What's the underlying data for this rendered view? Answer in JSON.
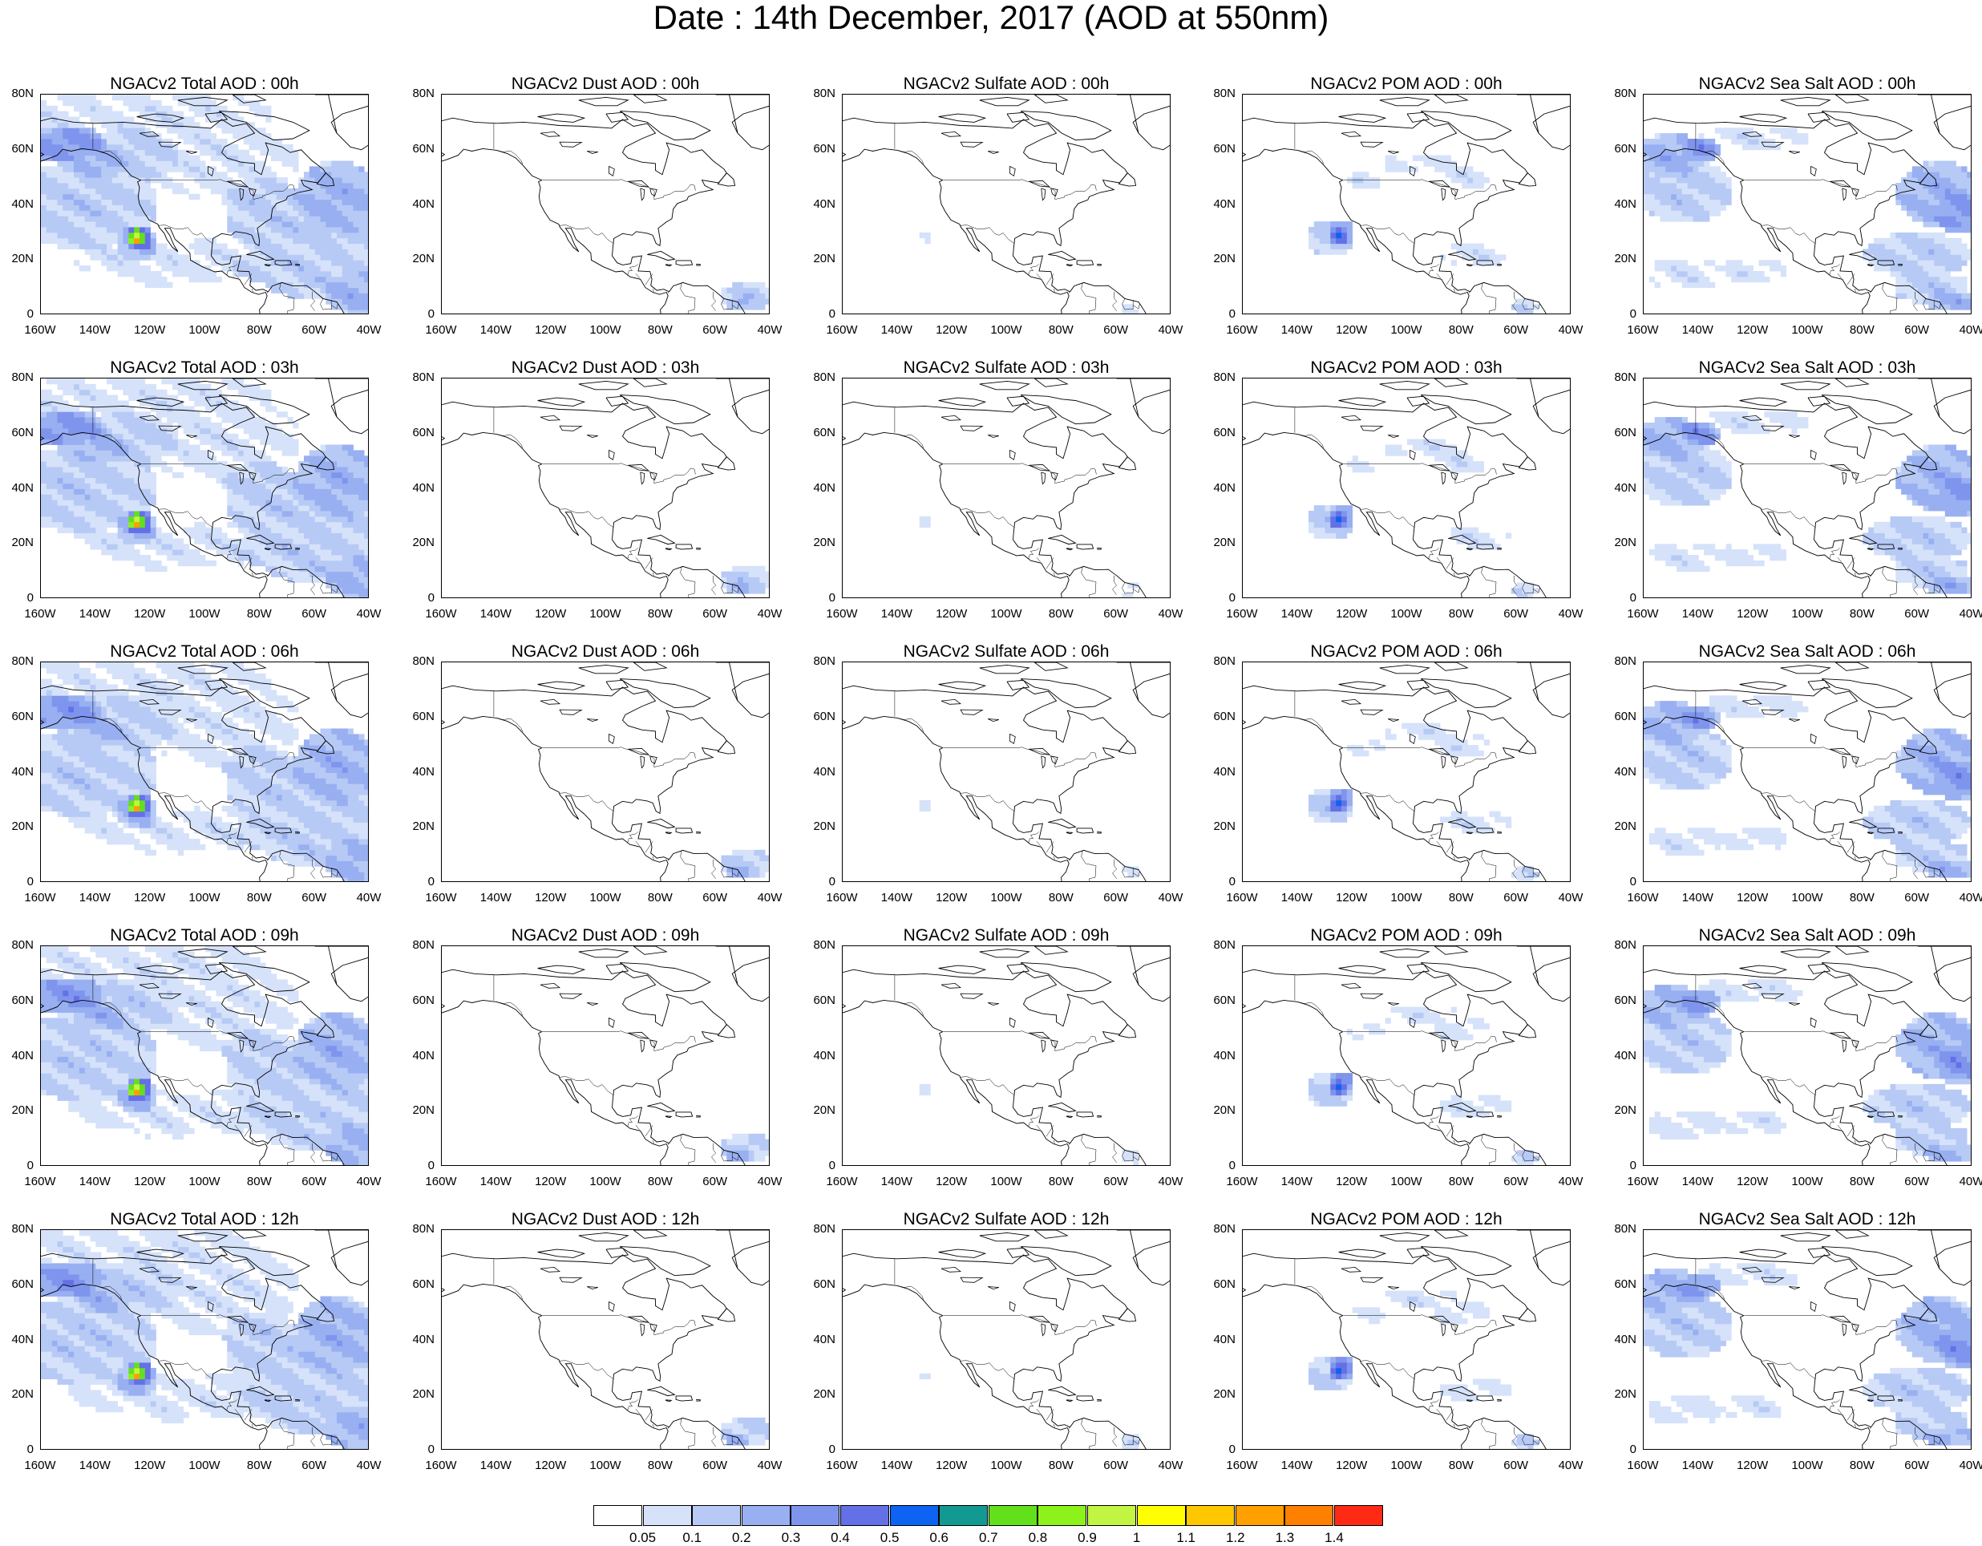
{
  "title": "Date : 14th December, 2017 (AOD at 550nm)",
  "lat_labels": [
    "80N",
    "60N",
    "40N",
    "20N",
    "0"
  ],
  "lon_labels": [
    "160W",
    "140W",
    "120W",
    "100W",
    "80W",
    "60W",
    "40W"
  ],
  "colorbar": {
    "labels": [
      "0.05",
      "0.1",
      "0.2",
      "0.3",
      "0.4",
      "0.5",
      "0.6",
      "0.7",
      "0.8",
      "0.9",
      "1",
      "1.1",
      "1.2",
      "1.3",
      "1.4"
    ],
    "colors": [
      "#ffffff",
      "#d5e2fa",
      "#b7caf5",
      "#98aff1",
      "#7f94ed",
      "#6470e6",
      "#0d63f2",
      "#129992",
      "#62e01c",
      "#8cf219",
      "#c2f542",
      "#ffff00",
      "#ffc700",
      "#ff9f00",
      "#ff7f00",
      "#ff2a16"
    ]
  },
  "panels": [
    {
      "title": "NGACv2 Total AOD : 00h",
      "type": "total"
    },
    {
      "title": "NGACv2 Dust AOD : 00h",
      "type": "dust"
    },
    {
      "title": "NGACv2 Sulfate AOD : 00h",
      "type": "sulfate"
    },
    {
      "title": "NGACv2 POM AOD : 00h",
      "type": "pom"
    },
    {
      "title": "NGACv2 Sea Salt AOD : 00h",
      "type": "seasalt"
    },
    {
      "title": "NGACv2 Total AOD : 03h",
      "type": "total"
    },
    {
      "title": "NGACv2 Dust AOD : 03h",
      "type": "dust"
    },
    {
      "title": "NGACv2 Sulfate AOD : 03h",
      "type": "sulfate"
    },
    {
      "title": "NGACv2 POM AOD : 03h",
      "type": "pom"
    },
    {
      "title": "NGACv2 Sea Salt AOD : 03h",
      "type": "seasalt"
    },
    {
      "title": "NGACv2 Total AOD : 06h",
      "type": "total"
    },
    {
      "title": "NGACv2 Dust AOD : 06h",
      "type": "dust"
    },
    {
      "title": "NGACv2 Sulfate AOD : 06h",
      "type": "sulfate"
    },
    {
      "title": "NGACv2 POM AOD : 06h",
      "type": "pom"
    },
    {
      "title": "NGACv2 Sea Salt AOD : 06h",
      "type": "seasalt"
    },
    {
      "title": "NGACv2 Total AOD : 09h",
      "type": "total"
    },
    {
      "title": "NGACv2 Dust AOD : 09h",
      "type": "dust"
    },
    {
      "title": "NGACv2 Sulfate AOD : 09h",
      "type": "sulfate"
    },
    {
      "title": "NGACv2 POM AOD : 09h",
      "type": "pom"
    },
    {
      "title": "NGACv2 Sea Salt  AOD : 09h",
      "type": "seasalt"
    },
    {
      "title": "NGACv2 Total AOD  : 12h",
      "type": "total"
    },
    {
      "title": "NGACv2 Dust AOD : 12h",
      "type": "dust"
    },
    {
      "title": "NGACv2 Sulfate AOD : 12h",
      "type": "sulfate"
    },
    {
      "title": "NGACv2 POM  AOD : 12h",
      "type": "pom"
    },
    {
      "title": "NGACv2 Sea Salt  AOD : 12h",
      "type": "seasalt"
    }
  ]
}
